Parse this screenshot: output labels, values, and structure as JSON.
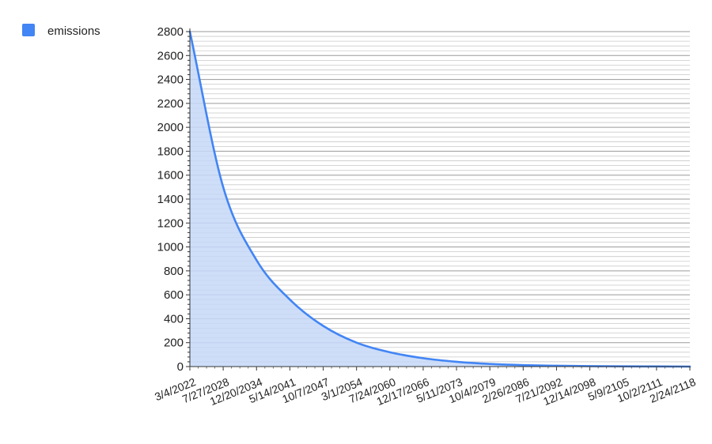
{
  "chart_data": {
    "type": "area",
    "title": "",
    "xlabel": "",
    "ylabel": "",
    "legend": {
      "position": "top-left",
      "entries": [
        "emissions"
      ]
    },
    "grid": true,
    "ylim": [
      0,
      2800
    ],
    "yticks": [
      0,
      200,
      400,
      600,
      800,
      1000,
      1200,
      1400,
      1600,
      1800,
      2000,
      2200,
      2400,
      2600,
      2800
    ],
    "xtick_labels": [
      "3/4/2022",
      "7/27/2028",
      "12/20/2034",
      "5/14/2041",
      "10/7/2047",
      "3/1/2054",
      "7/24/2060",
      "12/17/2066",
      "5/11/2073",
      "10/4/2079",
      "2/26/2086",
      "7/21/2092",
      "12/14/2098",
      "5/9/2105",
      "10/2/2111",
      "2/24/2118"
    ],
    "x": [
      "3/4/2022",
      "7/27/2028",
      "12/20/2034",
      "5/14/2041",
      "10/7/2047",
      "3/1/2054",
      "7/24/2060",
      "12/17/2066",
      "5/11/2073",
      "10/4/2079",
      "2/26/2086",
      "7/21/2092",
      "12/14/2098",
      "5/9/2105",
      "10/2/2111",
      "2/24/2118"
    ],
    "series": [
      {
        "name": "emissions",
        "color": "#4285f4",
        "fill": "#c6d8f8",
        "values": [
          2800,
          1500,
          890,
          560,
          340,
          200,
          120,
          70,
          40,
          22,
          12,
          7,
          4,
          2,
          1,
          0
        ]
      }
    ]
  }
}
